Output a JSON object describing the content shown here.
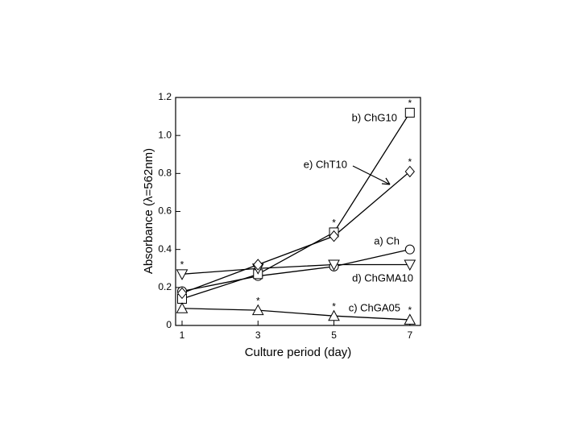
{
  "chart_data": {
    "type": "line",
    "x_label": "Culture period (day)",
    "y_label": "Absorbance (λ=562nm)",
    "x": [
      1,
      3,
      5,
      7
    ],
    "xlim": [
      0.83,
      7.28
    ],
    "xticks": [
      1,
      3,
      5,
      7
    ],
    "ylim": [
      0,
      1.2
    ],
    "yticks": [
      0,
      0.2,
      0.4,
      0.6,
      0.8,
      {
        "value": 1,
        "label": "1.0"
      },
      1.2
    ],
    "series": [
      {
        "name": "a) Ch",
        "marker": "circle",
        "color": "#000000",
        "values": [
          0.18,
          0.26,
          0.31,
          0.4
        ],
        "markers": [
          null,
          null,
          null,
          null
        ]
      },
      {
        "name": "b) ChG10",
        "marker": "square",
        "color": "#000000",
        "values": [
          0.14,
          0.27,
          0.49,
          1.12
        ],
        "markers": [
          null,
          null,
          "*",
          "*"
        ]
      },
      {
        "name": "c) ChGA05",
        "marker": "triangle-up",
        "color": "#000000",
        "values": [
          0.09,
          0.08,
          0.05,
          0.03
        ],
        "markers": [
          null,
          "*",
          "*",
          "*"
        ]
      },
      {
        "name": "d) ChGMA10",
        "marker": "triangle-down",
        "color": "#000000",
        "values": [
          0.27,
          0.3,
          0.32,
          0.32
        ],
        "markers": [
          "*",
          null,
          null,
          null
        ]
      },
      {
        "name": "e) ChT10",
        "marker": "diamond",
        "color": "#000000",
        "values": [
          0.17,
          0.32,
          0.47,
          0.81
        ],
        "markers": [
          null,
          null,
          null,
          "*"
        ]
      }
    ]
  }
}
